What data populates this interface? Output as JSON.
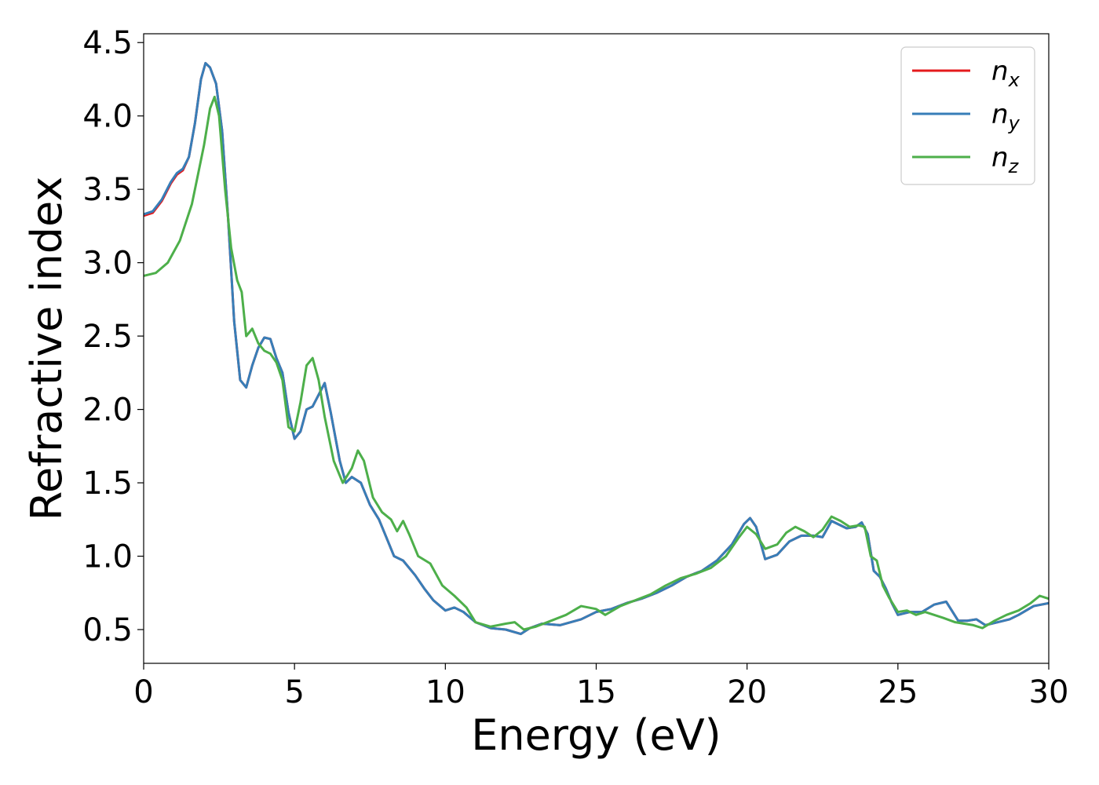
{
  "chart_data": {
    "type": "line",
    "xlabel": "Energy (eV)",
    "ylabel": "Refractive index",
    "xlim": [
      0,
      30
    ],
    "ylim": [
      0.27,
      4.56
    ],
    "xticks": [
      0,
      5,
      10,
      15,
      20,
      25,
      30
    ],
    "xtick_labels": [
      "0",
      "5",
      "10",
      "15",
      "20",
      "25",
      "30"
    ],
    "yticks": [
      0.5,
      1.0,
      1.5,
      2.0,
      2.5,
      3.0,
      3.5,
      4.0,
      4.5
    ],
    "ytick_labels": [
      "0.5",
      "1.0",
      "1.5",
      "2.0",
      "2.5",
      "3.0",
      "3.5",
      "4.0",
      "4.5"
    ],
    "grid": false,
    "legend_position": "top-right",
    "series": [
      {
        "name": "n",
        "subscript": "x",
        "color": "#e41a1c",
        "points": [
          [
            0,
            3.32
          ],
          [
            0.3,
            3.34
          ],
          [
            0.6,
            3.42
          ],
          [
            0.9,
            3.54
          ],
          [
            1.1,
            3.6
          ],
          [
            1.3,
            3.63
          ],
          [
            1.5,
            3.72
          ],
          [
            1.7,
            3.95
          ],
          [
            1.9,
            4.25
          ],
          [
            2.05,
            4.36
          ],
          [
            2.2,
            4.33
          ],
          [
            2.4,
            4.22
          ],
          [
            2.6,
            3.9
          ],
          [
            2.8,
            3.3
          ],
          [
            3.0,
            2.6
          ],
          [
            3.2,
            2.2
          ],
          [
            3.4,
            2.15
          ],
          [
            3.6,
            2.3
          ],
          [
            3.8,
            2.42
          ],
          [
            4.0,
            2.49
          ],
          [
            4.2,
            2.48
          ],
          [
            4.4,
            2.35
          ],
          [
            4.6,
            2.25
          ],
          [
            4.8,
            1.98
          ],
          [
            5.0,
            1.8
          ],
          [
            5.2,
            1.85
          ],
          [
            5.4,
            2.0
          ],
          [
            5.6,
            2.02
          ],
          [
            5.8,
            2.1
          ],
          [
            6.0,
            2.18
          ],
          [
            6.2,
            1.98
          ],
          [
            6.5,
            1.65
          ],
          [
            6.7,
            1.5
          ],
          [
            6.9,
            1.54
          ],
          [
            7.2,
            1.5
          ],
          [
            7.5,
            1.35
          ],
          [
            7.8,
            1.25
          ],
          [
            8.0,
            1.15
          ],
          [
            8.3,
            1.0
          ],
          [
            8.6,
            0.97
          ],
          [
            9.0,
            0.87
          ],
          [
            9.3,
            0.78
          ],
          [
            9.6,
            0.7
          ],
          [
            10.0,
            0.63
          ],
          [
            10.3,
            0.65
          ],
          [
            10.6,
            0.62
          ],
          [
            11.0,
            0.55
          ],
          [
            11.5,
            0.51
          ],
          [
            12.0,
            0.5
          ],
          [
            12.5,
            0.47
          ],
          [
            12.8,
            0.51
          ],
          [
            13.2,
            0.54
          ],
          [
            13.8,
            0.53
          ],
          [
            14.5,
            0.57
          ],
          [
            15.0,
            0.62
          ],
          [
            15.5,
            0.64
          ],
          [
            16.0,
            0.68
          ],
          [
            16.5,
            0.71
          ],
          [
            17.0,
            0.75
          ],
          [
            17.5,
            0.8
          ],
          [
            18.0,
            0.86
          ],
          [
            18.5,
            0.9
          ],
          [
            19.0,
            0.97
          ],
          [
            19.5,
            1.08
          ],
          [
            19.9,
            1.22
          ],
          [
            20.1,
            1.26
          ],
          [
            20.3,
            1.2
          ],
          [
            20.6,
            0.98
          ],
          [
            21.0,
            1.01
          ],
          [
            21.4,
            1.1
          ],
          [
            21.8,
            1.14
          ],
          [
            22.2,
            1.14
          ],
          [
            22.5,
            1.13
          ],
          [
            22.8,
            1.24
          ],
          [
            23.0,
            1.22
          ],
          [
            23.3,
            1.19
          ],
          [
            23.6,
            1.2
          ],
          [
            23.8,
            1.23
          ],
          [
            24.0,
            1.15
          ],
          [
            24.2,
            0.9
          ],
          [
            24.4,
            0.86
          ],
          [
            24.6,
            0.78
          ],
          [
            24.8,
            0.68
          ],
          [
            25.0,
            0.6
          ],
          [
            25.4,
            0.62
          ],
          [
            25.8,
            0.62
          ],
          [
            26.2,
            0.67
          ],
          [
            26.6,
            0.69
          ],
          [
            27.0,
            0.56
          ],
          [
            27.3,
            0.56
          ],
          [
            27.6,
            0.57
          ],
          [
            27.9,
            0.53
          ],
          [
            28.3,
            0.55
          ],
          [
            28.7,
            0.57
          ],
          [
            29.0,
            0.6
          ],
          [
            29.5,
            0.66
          ],
          [
            30.0,
            0.68
          ]
        ]
      },
      {
        "name": "n",
        "subscript": "y",
        "color": "#377eb8",
        "points": [
          [
            0,
            3.33
          ],
          [
            0.3,
            3.35
          ],
          [
            0.6,
            3.43
          ],
          [
            0.9,
            3.55
          ],
          [
            1.1,
            3.61
          ],
          [
            1.3,
            3.64
          ],
          [
            1.5,
            3.72
          ],
          [
            1.7,
            3.95
          ],
          [
            1.9,
            4.25
          ],
          [
            2.05,
            4.36
          ],
          [
            2.2,
            4.33
          ],
          [
            2.4,
            4.22
          ],
          [
            2.6,
            3.9
          ],
          [
            2.8,
            3.3
          ],
          [
            3.0,
            2.6
          ],
          [
            3.2,
            2.2
          ],
          [
            3.4,
            2.15
          ],
          [
            3.6,
            2.3
          ],
          [
            3.8,
            2.42
          ],
          [
            4.0,
            2.49
          ],
          [
            4.2,
            2.48
          ],
          [
            4.4,
            2.35
          ],
          [
            4.6,
            2.25
          ],
          [
            4.8,
            1.98
          ],
          [
            5.0,
            1.8
          ],
          [
            5.2,
            1.85
          ],
          [
            5.4,
            2.0
          ],
          [
            5.6,
            2.02
          ],
          [
            5.8,
            2.1
          ],
          [
            6.0,
            2.18
          ],
          [
            6.2,
            1.98
          ],
          [
            6.5,
            1.65
          ],
          [
            6.7,
            1.5
          ],
          [
            6.9,
            1.54
          ],
          [
            7.2,
            1.5
          ],
          [
            7.5,
            1.35
          ],
          [
            7.8,
            1.25
          ],
          [
            8.0,
            1.15
          ],
          [
            8.3,
            1.0
          ],
          [
            8.6,
            0.97
          ],
          [
            9.0,
            0.87
          ],
          [
            9.3,
            0.78
          ],
          [
            9.6,
            0.7
          ],
          [
            10.0,
            0.63
          ],
          [
            10.3,
            0.65
          ],
          [
            10.6,
            0.62
          ],
          [
            11.0,
            0.55
          ],
          [
            11.5,
            0.51
          ],
          [
            12.0,
            0.5
          ],
          [
            12.5,
            0.47
          ],
          [
            12.8,
            0.51
          ],
          [
            13.2,
            0.54
          ],
          [
            13.8,
            0.53
          ],
          [
            14.5,
            0.57
          ],
          [
            15.0,
            0.62
          ],
          [
            15.5,
            0.64
          ],
          [
            16.0,
            0.68
          ],
          [
            16.5,
            0.71
          ],
          [
            17.0,
            0.75
          ],
          [
            17.5,
            0.8
          ],
          [
            18.0,
            0.86
          ],
          [
            18.5,
            0.9
          ],
          [
            19.0,
            0.97
          ],
          [
            19.5,
            1.08
          ],
          [
            19.9,
            1.22
          ],
          [
            20.1,
            1.26
          ],
          [
            20.3,
            1.2
          ],
          [
            20.6,
            0.98
          ],
          [
            21.0,
            1.01
          ],
          [
            21.4,
            1.1
          ],
          [
            21.8,
            1.14
          ],
          [
            22.2,
            1.14
          ],
          [
            22.5,
            1.13
          ],
          [
            22.8,
            1.24
          ],
          [
            23.0,
            1.22
          ],
          [
            23.3,
            1.19
          ],
          [
            23.6,
            1.2
          ],
          [
            23.8,
            1.23
          ],
          [
            24.0,
            1.15
          ],
          [
            24.2,
            0.9
          ],
          [
            24.4,
            0.86
          ],
          [
            24.6,
            0.78
          ],
          [
            24.8,
            0.68
          ],
          [
            25.0,
            0.6
          ],
          [
            25.4,
            0.62
          ],
          [
            25.8,
            0.62
          ],
          [
            26.2,
            0.67
          ],
          [
            26.6,
            0.69
          ],
          [
            27.0,
            0.56
          ],
          [
            27.3,
            0.56
          ],
          [
            27.6,
            0.57
          ],
          [
            27.9,
            0.53
          ],
          [
            28.3,
            0.55
          ],
          [
            28.7,
            0.57
          ],
          [
            29.0,
            0.6
          ],
          [
            29.5,
            0.66
          ],
          [
            30.0,
            0.68
          ]
        ]
      },
      {
        "name": "n",
        "subscript": "z",
        "color": "#4daf4a",
        "points": [
          [
            0,
            2.91
          ],
          [
            0.4,
            2.93
          ],
          [
            0.8,
            3.0
          ],
          [
            1.2,
            3.15
          ],
          [
            1.6,
            3.4
          ],
          [
            2.0,
            3.8
          ],
          [
            2.2,
            4.05
          ],
          [
            2.35,
            4.13
          ],
          [
            2.5,
            4.0
          ],
          [
            2.7,
            3.5
          ],
          [
            2.9,
            3.1
          ],
          [
            3.1,
            2.88
          ],
          [
            3.25,
            2.8
          ],
          [
            3.4,
            2.5
          ],
          [
            3.6,
            2.55
          ],
          [
            3.8,
            2.45
          ],
          [
            4.0,
            2.4
          ],
          [
            4.2,
            2.38
          ],
          [
            4.4,
            2.32
          ],
          [
            4.6,
            2.2
          ],
          [
            4.8,
            1.88
          ],
          [
            5.0,
            1.85
          ],
          [
            5.2,
            2.05
          ],
          [
            5.4,
            2.3
          ],
          [
            5.6,
            2.35
          ],
          [
            5.8,
            2.2
          ],
          [
            6.0,
            1.95
          ],
          [
            6.3,
            1.65
          ],
          [
            6.6,
            1.5
          ],
          [
            6.9,
            1.6
          ],
          [
            7.1,
            1.72
          ],
          [
            7.3,
            1.65
          ],
          [
            7.6,
            1.4
          ],
          [
            7.9,
            1.3
          ],
          [
            8.2,
            1.25
          ],
          [
            8.4,
            1.17
          ],
          [
            8.6,
            1.24
          ],
          [
            8.8,
            1.15
          ],
          [
            9.1,
            1.0
          ],
          [
            9.5,
            0.95
          ],
          [
            9.9,
            0.8
          ],
          [
            10.3,
            0.73
          ],
          [
            10.7,
            0.65
          ],
          [
            11.0,
            0.55
          ],
          [
            11.5,
            0.52
          ],
          [
            12.0,
            0.54
          ],
          [
            12.3,
            0.55
          ],
          [
            12.6,
            0.5
          ],
          [
            13.0,
            0.52
          ],
          [
            13.5,
            0.56
          ],
          [
            14.0,
            0.6
          ],
          [
            14.5,
            0.66
          ],
          [
            15.0,
            0.64
          ],
          [
            15.3,
            0.6
          ],
          [
            15.8,
            0.66
          ],
          [
            16.3,
            0.7
          ],
          [
            16.8,
            0.74
          ],
          [
            17.3,
            0.8
          ],
          [
            17.8,
            0.85
          ],
          [
            18.3,
            0.88
          ],
          [
            18.8,
            0.92
          ],
          [
            19.3,
            1.0
          ],
          [
            19.7,
            1.12
          ],
          [
            20.0,
            1.2
          ],
          [
            20.3,
            1.15
          ],
          [
            20.6,
            1.05
          ],
          [
            21.0,
            1.08
          ],
          [
            21.3,
            1.16
          ],
          [
            21.6,
            1.2
          ],
          [
            21.9,
            1.17
          ],
          [
            22.2,
            1.13
          ],
          [
            22.5,
            1.18
          ],
          [
            22.8,
            1.27
          ],
          [
            23.1,
            1.24
          ],
          [
            23.4,
            1.2
          ],
          [
            23.7,
            1.21
          ],
          [
            23.9,
            1.2
          ],
          [
            24.1,
            1.0
          ],
          [
            24.3,
            0.97
          ],
          [
            24.5,
            0.8
          ],
          [
            24.7,
            0.72
          ],
          [
            25.0,
            0.62
          ],
          [
            25.3,
            0.63
          ],
          [
            25.6,
            0.6
          ],
          [
            25.9,
            0.62
          ],
          [
            26.2,
            0.6
          ],
          [
            26.5,
            0.58
          ],
          [
            26.9,
            0.55
          ],
          [
            27.2,
            0.54
          ],
          [
            27.5,
            0.53
          ],
          [
            27.8,
            0.51
          ],
          [
            28.2,
            0.56
          ],
          [
            28.6,
            0.6
          ],
          [
            29.0,
            0.63
          ],
          [
            29.4,
            0.68
          ],
          [
            29.7,
            0.73
          ],
          [
            30.0,
            0.71
          ]
        ]
      }
    ]
  }
}
